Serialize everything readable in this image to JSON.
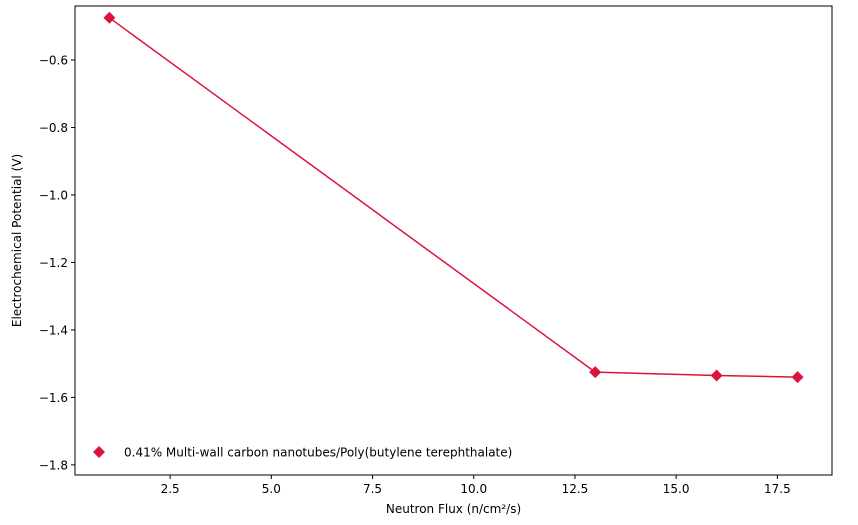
{
  "chart_data": {
    "type": "line",
    "title": "",
    "xlabel": "Neutron Flux (n/cm²/s)",
    "ylabel": "Electrochemical Potential (V)",
    "xlim": [
      0.15,
      18.85
    ],
    "ylim": [
      -1.83,
      -0.44
    ],
    "xticks": [
      2.5,
      5.0,
      7.5,
      10.0,
      12.5,
      15.0,
      17.5
    ],
    "xtick_labels": [
      "2.5",
      "5.0",
      "7.5",
      "10.0",
      "12.5",
      "15.0",
      "17.5"
    ],
    "yticks": [
      -0.6,
      -0.8,
      -1.0,
      -1.2,
      -1.4,
      -1.6,
      -1.8
    ],
    "ytick_labels": [
      "−0.6",
      "−0.8",
      "−1.0",
      "−1.2",
      "−1.4",
      "−1.6",
      "−1.8"
    ],
    "grid": false,
    "legend_position": "lower-left",
    "series": [
      {
        "name": "0.41% Multi-wall carbon nanotubes/Poly(butylene terephthalate)",
        "color": "#dc143c",
        "marker": "diamond",
        "x": [
          1,
          13,
          16,
          18
        ],
        "y": [
          -0.475,
          -1.525,
          -1.535,
          -1.54
        ]
      }
    ]
  }
}
